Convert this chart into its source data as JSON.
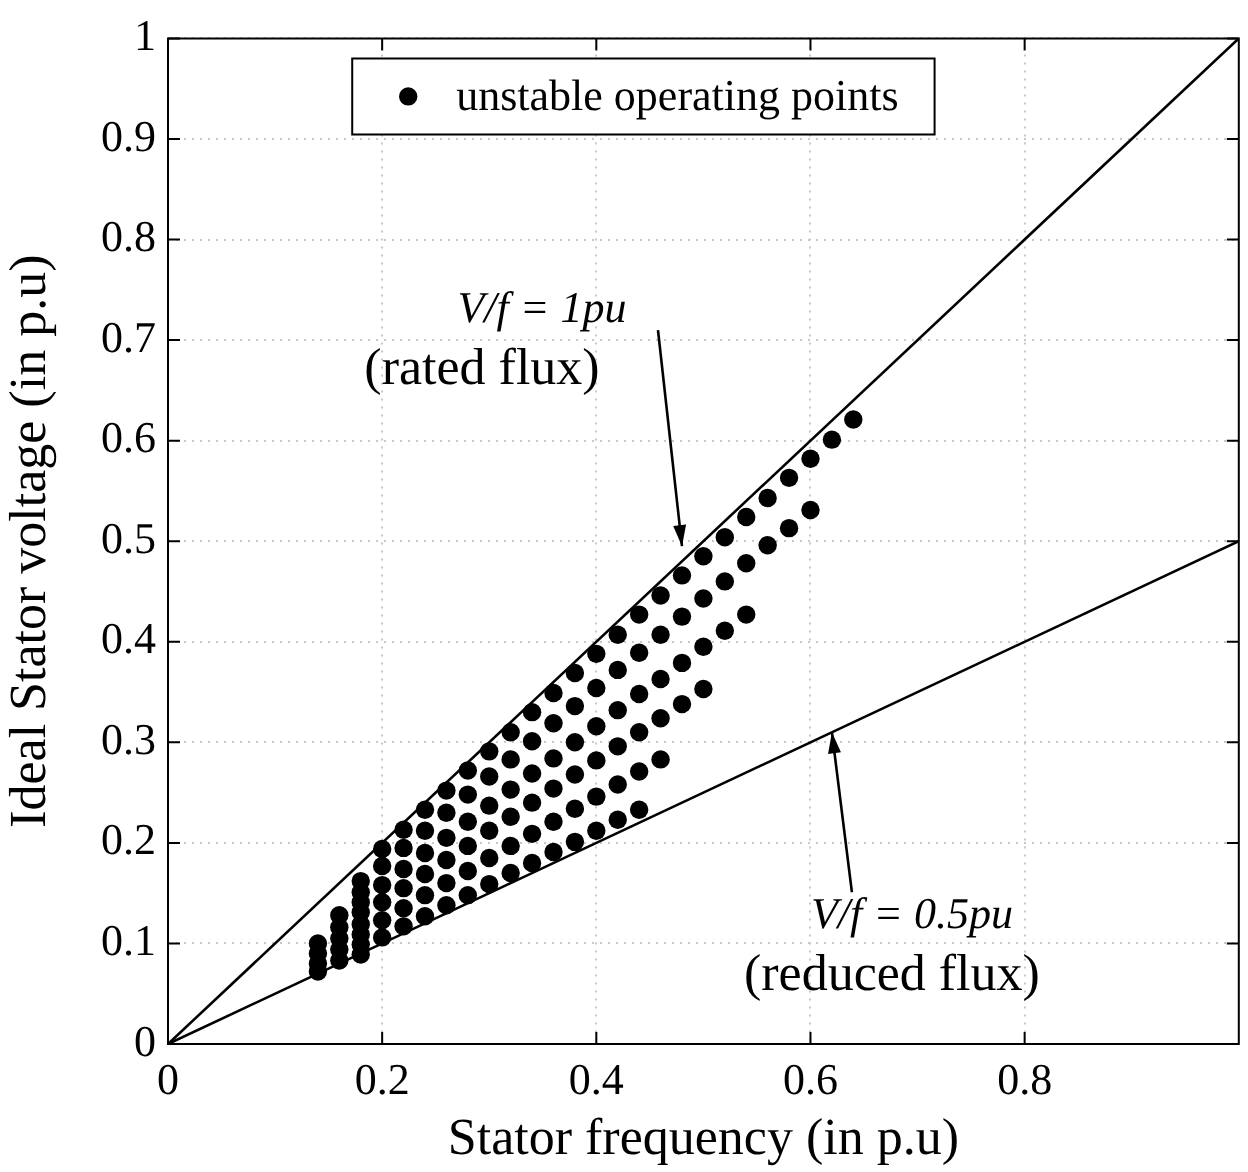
{
  "chart_data": {
    "type": "scatter",
    "xlabel": "Stator frequency (in p.u)",
    "ylabel": "Ideal Stator voltage (in p.u)",
    "xlim": [
      0,
      1
    ],
    "ylim": [
      0,
      1
    ],
    "xticks": [
      0,
      0.2,
      0.4,
      0.6,
      0.8
    ],
    "yticks": [
      0,
      0.1,
      0.2,
      0.3,
      0.4,
      0.5,
      0.6,
      0.7,
      0.8,
      0.9,
      1
    ],
    "grid": true,
    "legend": "top",
    "series": [
      {
        "name": "unstable operating points",
        "marker": "circle",
        "color": "#000000",
        "x": [
          0.14,
          0.14,
          0.14,
          0.14,
          0.16,
          0.16,
          0.16,
          0.16,
          0.16,
          0.18,
          0.18,
          0.18,
          0.18,
          0.18,
          0.18,
          0.18,
          0.18,
          0.2,
          0.22,
          0.24,
          0.26,
          0.28,
          0.3,
          0.32,
          0.34,
          0.36,
          0.38,
          0.4,
          0.42,
          0.44,
          0.46,
          0.48,
          0.5,
          0.52,
          0.54,
          0.56,
          0.58,
          0.6,
          0.62,
          0.64,
          0.2,
          0.22,
          0.24,
          0.26,
          0.28,
          0.3,
          0.32,
          0.34,
          0.36,
          0.38,
          0.4,
          0.42,
          0.44,
          0.46,
          0.48,
          0.5,
          0.52,
          0.54,
          0.56,
          0.58,
          0.6,
          0.2,
          0.22,
          0.24,
          0.26,
          0.28,
          0.3,
          0.32,
          0.34,
          0.36,
          0.38,
          0.4,
          0.42,
          0.44,
          0.46,
          0.48,
          0.5,
          0.52,
          0.54,
          0.2,
          0.22,
          0.24,
          0.26,
          0.28,
          0.3,
          0.32,
          0.34,
          0.36,
          0.38,
          0.4,
          0.42,
          0.44,
          0.46,
          0.48,
          0.5,
          0.2,
          0.22,
          0.24,
          0.26,
          0.28,
          0.3,
          0.32,
          0.34,
          0.36,
          0.38,
          0.4,
          0.42,
          0.44,
          0.46,
          0.2,
          0.22,
          0.24,
          0.26,
          0.28,
          0.3,
          0.32,
          0.34,
          0.36,
          0.38,
          0.4,
          0.42,
          0.44
        ],
        "values": [
          0.1,
          0.09,
          0.08,
          0.072,
          0.128,
          0.116,
          0.105,
          0.094,
          0.083,
          0.162,
          0.151,
          0.141,
          0.131,
          0.119,
          0.109,
          0.099,
          0.089,
          0.194,
          0.213,
          0.233,
          0.252,
          0.272,
          0.291,
          0.31,
          0.33,
          0.349,
          0.369,
          0.388,
          0.407,
          0.427,
          0.446,
          0.466,
          0.485,
          0.504,
          0.524,
          0.543,
          0.563,
          0.582,
          0.601,
          0.621,
          0.177,
          0.195,
          0.212,
          0.23,
          0.248,
          0.266,
          0.283,
          0.301,
          0.319,
          0.336,
          0.354,
          0.372,
          0.389,
          0.407,
          0.425,
          0.443,
          0.46,
          0.478,
          0.496,
          0.513,
          0.531,
          0.158,
          0.174,
          0.19,
          0.205,
          0.221,
          0.237,
          0.253,
          0.269,
          0.284,
          0.3,
          0.316,
          0.332,
          0.348,
          0.363,
          0.379,
          0.395,
          0.411,
          0.427,
          0.141,
          0.155,
          0.169,
          0.183,
          0.197,
          0.212,
          0.226,
          0.24,
          0.254,
          0.268,
          0.282,
          0.296,
          0.31,
          0.324,
          0.338,
          0.353,
          0.123,
          0.135,
          0.148,
          0.16,
          0.172,
          0.185,
          0.197,
          0.209,
          0.221,
          0.234,
          0.246,
          0.258,
          0.271,
          0.283,
          0.106,
          0.117,
          0.127,
          0.138,
          0.148,
          0.159,
          0.17,
          0.18,
          0.191,
          0.201,
          0.212,
          0.223,
          0.233
        ]
      },
      {
        "type": "line",
        "marker": "none",
        "color": "#000000",
        "x": [
          0,
          1
        ],
        "values": [
          0,
          1
        ]
      },
      {
        "type": "line",
        "marker": "none",
        "color": "#000000",
        "x": [
          0,
          1
        ],
        "values": [
          0,
          0.5
        ]
      }
    ],
    "annotations": [
      {
        "text": "V/f = 1pu\n(rated flux)",
        "x": 0.48,
        "y": 0.495
      },
      {
        "text": "V/f = 0.5pu\n(reduced flux)",
        "x": 0.62,
        "y": 0.31
      }
    ]
  }
}
